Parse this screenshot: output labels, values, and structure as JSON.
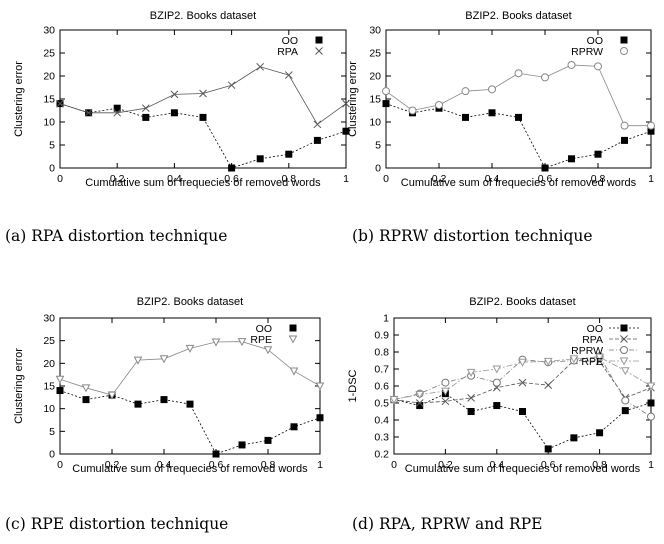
{
  "chart_data": [
    {
      "type": "line",
      "title": "BZIP2. Books dataset",
      "xlabel": "Cumulative sum of frequecies of removed words",
      "ylabel": "Clustering error",
      "xlim": [
        0,
        1
      ],
      "ylim": [
        0,
        30
      ],
      "xticks": [
        "0",
        "0.2",
        "0.4",
        "0.6",
        "0.8",
        "1"
      ],
      "yticks": [
        "0",
        "5",
        "10",
        "15",
        "20",
        "25",
        "30"
      ],
      "legend_position": "top-right",
      "caption": "(a) RPA distortion technique",
      "x": [
        0,
        0.1,
        0.2,
        0.3,
        0.4,
        0.5,
        0.6,
        0.7,
        0.8,
        0.9,
        1.0
      ],
      "series": [
        {
          "name": "OO",
          "marker": "square",
          "color": "#000000",
          "dash": "2,2",
          "values": [
            14,
            12,
            13,
            11,
            12,
            11,
            0,
            2,
            3,
            6,
            8
          ]
        },
        {
          "name": "RPA",
          "marker": "x",
          "color": "#555555",
          "dash": "",
          "values": [
            14,
            12,
            12,
            13,
            16,
            16.2,
            18,
            22,
            20.2,
            9.5,
            14
          ]
        }
      ]
    },
    {
      "type": "line",
      "title": "BZIP2. Books dataset",
      "xlabel": "Cumulative sum of frequecies of removed words",
      "ylabel": "Clustering error",
      "xlim": [
        0,
        1
      ],
      "ylim": [
        0,
        30
      ],
      "xticks": [
        "0",
        "0.2",
        "0.4",
        "0.6",
        "0.8",
        "1"
      ],
      "yticks": [
        "0",
        "5",
        "10",
        "15",
        "20",
        "25",
        "30"
      ],
      "legend_position": "top-right",
      "caption": "(b) RPRW distortion technique",
      "x": [
        0,
        0.1,
        0.2,
        0.3,
        0.4,
        0.5,
        0.6,
        0.7,
        0.8,
        0.9,
        1.0
      ],
      "series": [
        {
          "name": "OO",
          "marker": "square",
          "color": "#000000",
          "dash": "2,2",
          "values": [
            14,
            12,
            13,
            11,
            12,
            11,
            0,
            2,
            3,
            6,
            8
          ]
        },
        {
          "name": "RPRW",
          "marker": "circle",
          "color": "#888888",
          "dash": "",
          "values": [
            16.7,
            12.5,
            13.7,
            16.7,
            17.1,
            20.6,
            19.7,
            22.4,
            22.1,
            9.2,
            9.2
          ]
        }
      ]
    },
    {
      "type": "line",
      "title": "BZIP2. Books dataset",
      "xlabel": "Cumulative sum of frequecies of removed words",
      "ylabel": "Clustering error",
      "xlim": [
        0,
        1
      ],
      "ylim": [
        0,
        30
      ],
      "xticks": [
        "0",
        "0.2",
        "0.4",
        "0.6",
        "0.8",
        "1"
      ],
      "yticks": [
        "0",
        "5",
        "10",
        "15",
        "20",
        "25",
        "30"
      ],
      "legend_position": "top-right",
      "caption": "(c) RPE distortion technique",
      "x": [
        0,
        0.1,
        0.2,
        0.3,
        0.4,
        0.5,
        0.6,
        0.7,
        0.8,
        0.9,
        1.0
      ],
      "series": [
        {
          "name": "OO",
          "marker": "square",
          "color": "#000000",
          "dash": "2,2",
          "values": [
            14,
            12,
            13,
            11,
            12,
            11,
            0,
            2,
            3,
            6,
            8
          ]
        },
        {
          "name": "RPE",
          "marker": "triangle-down",
          "color": "#888888",
          "dash": "",
          "values": [
            16.5,
            14.6,
            13,
            20.7,
            21,
            23.3,
            24.7,
            24.8,
            23,
            18.3,
            15
          ]
        }
      ]
    },
    {
      "type": "line",
      "title": "BZIP2. Books dataset",
      "xlabel": "Cumulative sum of frequecies of removed words",
      "ylabel": "1-DSC",
      "xlim": [
        0,
        1
      ],
      "ylim": [
        0.2,
        1
      ],
      "xticks": [
        "0",
        "0.2",
        "0.4",
        "0.6",
        "0.8",
        "1"
      ],
      "yticks": [
        "0.2",
        "0.3",
        "0.4",
        "0.5",
        "0.6",
        "0.7",
        "0.8",
        "0.9",
        "1"
      ],
      "legend_position": "top-right",
      "caption": "(d) RPA, RPRW and RPE",
      "x": [
        0,
        0.1,
        0.2,
        0.3,
        0.4,
        0.5,
        0.6,
        0.7,
        0.8,
        0.9,
        1.0
      ],
      "series": [
        {
          "name": "OO",
          "marker": "square",
          "color": "#000000",
          "dash": "2,2",
          "values": [
            0.52,
            0.485,
            0.555,
            0.45,
            0.485,
            0.45,
            0.23,
            0.295,
            0.325,
            0.455,
            0.5
          ]
        },
        {
          "name": "RPA",
          "marker": "x",
          "color": "#555555",
          "dash": "4,2",
          "values": [
            0.52,
            0.5,
            0.51,
            0.53,
            0.59,
            0.62,
            0.605,
            0.75,
            0.745,
            0.53,
            0.59
          ]
        },
        {
          "name": "RPRW",
          "marker": "circle",
          "color": "#777777",
          "dash": "5,2,1,2",
          "values": [
            0.52,
            0.555,
            0.62,
            0.66,
            0.62,
            0.755,
            0.74,
            0.75,
            0.775,
            0.515,
            0.42
          ]
        },
        {
          "name": "RPE",
          "marker": "triangle-down",
          "color": "#999999",
          "dash": "6,2,2,2",
          "values": [
            0.52,
            0.55,
            0.57,
            0.68,
            0.7,
            0.74,
            0.745,
            0.76,
            0.77,
            0.69,
            0.6
          ]
        }
      ]
    }
  ]
}
